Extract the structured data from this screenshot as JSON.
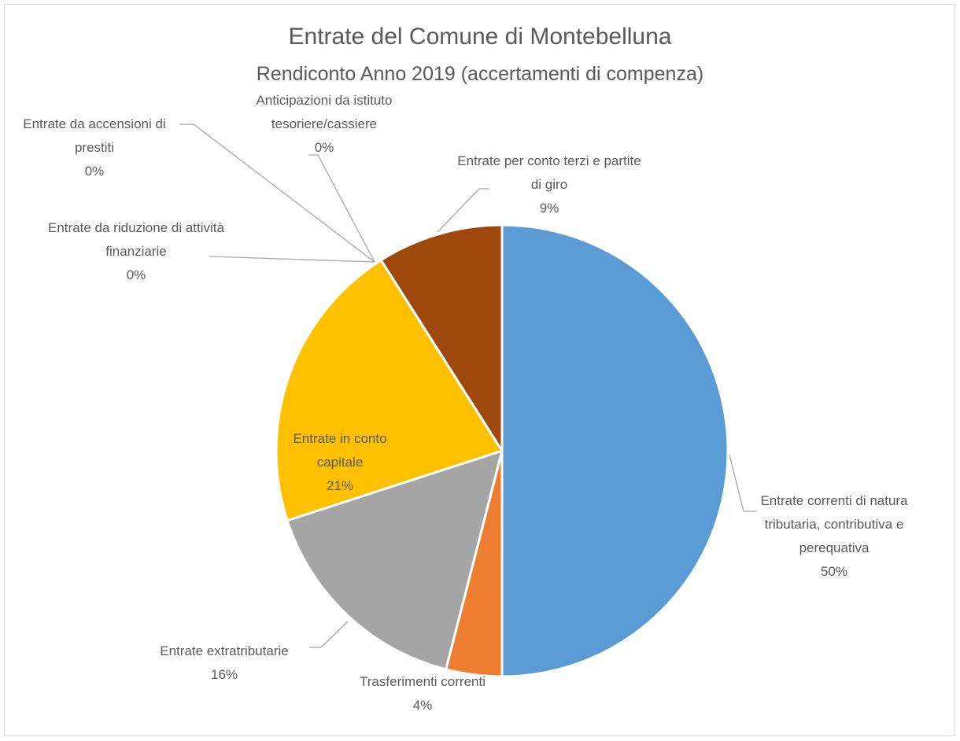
{
  "chart_data": {
    "type": "pie",
    "title": "Entrate del Comune di Montebelluna",
    "subtitle": "Rendiconto Anno 2019 (accertamenti di compenza)",
    "categories": [
      "Entrate correnti di natura tributaria, contributiva e perequativa",
      "Trasferimenti correnti",
      "Entrate extratributarie",
      "Entrate in conto capitale",
      "Entrate da riduzione di attività finanziarie",
      "Entrate da accensioni di prestiti",
      "Anticipazioni da istituto tesoriere/cassiere",
      "Entrate per conto terzi e partite di giro"
    ],
    "values": [
      50,
      4,
      16,
      21,
      0,
      0,
      0,
      9
    ],
    "value_labels": [
      "50%",
      "4%",
      "16%",
      "21%",
      "0%",
      "0%",
      "0%",
      "9%"
    ],
    "colors": [
      "#5b9bd5",
      "#ed7d31",
      "#a5a5a5",
      "#ffc000",
      "#4472c4",
      "#70ad47",
      "#264478",
      "#9e480e"
    ]
  }
}
